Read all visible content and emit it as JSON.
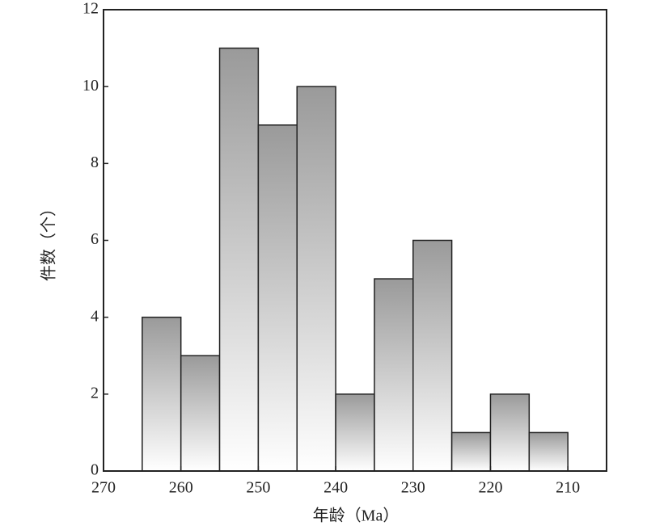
{
  "chart_data": {
    "type": "histogram",
    "x_label": "年龄（Ma）",
    "y_label": "件数（个）",
    "bins": [
      265,
      260,
      255,
      250,
      245,
      240,
      235,
      230,
      225,
      220,
      215,
      210
    ],
    "counts": [
      4,
      3,
      11,
      9,
      10,
      2,
      5,
      6,
      1,
      2,
      1
    ],
    "color": "#9a9a9a",
    "xlim": [
      270,
      205
    ],
    "ylim": [
      0,
      12
    ],
    "xticks": [
      270,
      260,
      250,
      240,
      230,
      220,
      210
    ],
    "yticks": [
      0,
      2,
      4,
      6,
      8,
      10,
      12
    ]
  }
}
